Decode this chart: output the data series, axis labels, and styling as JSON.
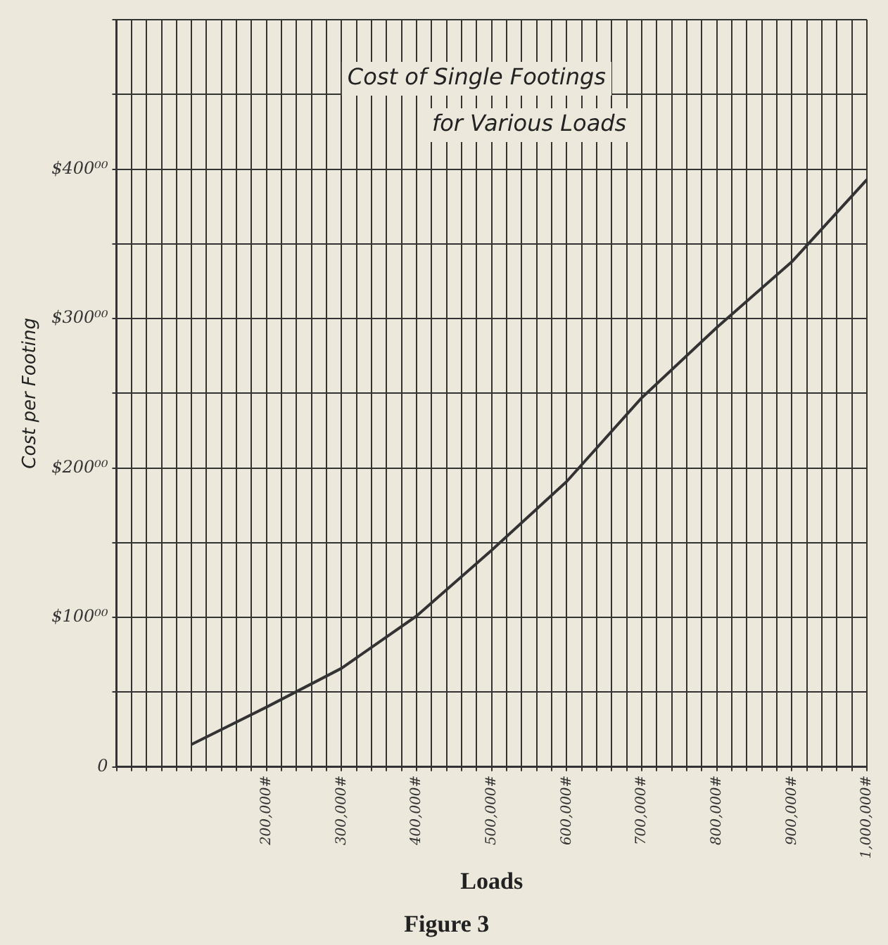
{
  "chart_data": {
    "type": "line",
    "title": "Cost of Single Footings",
    "subtitle": "for Various Loads",
    "xlabel": "Loads",
    "ylabel": "Cost per Footing",
    "annotations": [
      "Figure 3"
    ],
    "x": [
      100000,
      200000,
      300000,
      400000,
      500000,
      600000,
      700000,
      800000,
      900000,
      1000000
    ],
    "series": [
      {
        "color": "#333333",
        "values": [
          15,
          40,
          66,
          101,
          145,
          191,
          247,
          294,
          338,
          393
        ]
      }
    ],
    "xlim": [
      0,
      1000000
    ],
    "ylim": [
      0,
      500
    ],
    "xticks": [
      {
        "value": 0,
        "label": null
      },
      {
        "value": 20000,
        "label": null
      },
      {
        "value": 40000,
        "label": null
      },
      {
        "value": 60000,
        "label": null
      },
      {
        "value": 80000,
        "label": null
      },
      {
        "value": 100000,
        "label": null
      },
      {
        "value": 120000,
        "label": null
      },
      {
        "value": 140000,
        "label": null
      },
      {
        "value": 160000,
        "label": null
      },
      {
        "value": 180000,
        "label": null
      },
      {
        "value": 200000,
        "label": "200,000#"
      },
      {
        "value": 220000,
        "label": null
      },
      {
        "value": 240000,
        "label": null
      },
      {
        "value": 260000,
        "label": null
      },
      {
        "value": 280000,
        "label": null
      },
      {
        "value": 300000,
        "label": "300,000#"
      },
      {
        "value": 320000,
        "label": null
      },
      {
        "value": 340000,
        "label": null
      },
      {
        "value": 360000,
        "label": null
      },
      {
        "value": 380000,
        "label": null
      },
      {
        "value": 400000,
        "label": "400,000#"
      },
      {
        "value": 420000,
        "label": null
      },
      {
        "value": 440000,
        "label": null
      },
      {
        "value": 460000,
        "label": null
      },
      {
        "value": 480000,
        "label": null
      },
      {
        "value": 500000,
        "label": "500,000#"
      },
      {
        "value": 520000,
        "label": null
      },
      {
        "value": 540000,
        "label": null
      },
      {
        "value": 560000,
        "label": null
      },
      {
        "value": 580000,
        "label": null
      },
      {
        "value": 600000,
        "label": "600,000#"
      },
      {
        "value": 620000,
        "label": null
      },
      {
        "value": 640000,
        "label": null
      },
      {
        "value": 660000,
        "label": null
      },
      {
        "value": 680000,
        "label": null
      },
      {
        "value": 700000,
        "label": "700,000#"
      },
      {
        "value": 720000,
        "label": null
      },
      {
        "value": 740000,
        "label": null
      },
      {
        "value": 760000,
        "label": null
      },
      {
        "value": 780000,
        "label": null
      },
      {
        "value": 800000,
        "label": "800,000#"
      },
      {
        "value": 820000,
        "label": null
      },
      {
        "value": 840000,
        "label": null
      },
      {
        "value": 860000,
        "label": null
      },
      {
        "value": 880000,
        "label": null
      },
      {
        "value": 900000,
        "label": "900,000#"
      },
      {
        "value": 920000,
        "label": null
      },
      {
        "value": 940000,
        "label": null
      },
      {
        "value": 960000,
        "label": null
      },
      {
        "value": 980000,
        "label": null
      },
      {
        "value": 1000000,
        "label": "1,000,000#"
      }
    ],
    "yticks": [
      0,
      {
        "value": 50,
        "label": null
      },
      {
        "value": 100,
        "label": "$100⁰⁰"
      },
      {
        "value": 150,
        "label": null
      },
      {
        "value": 200,
        "label": "$200⁰⁰"
      },
      {
        "value": 250,
        "label": null
      },
      {
        "value": 300,
        "label": "$300⁰⁰"
      },
      {
        "value": 350,
        "label": null
      },
      {
        "value": 400,
        "label": "$400⁰⁰"
      },
      {
        "value": 450,
        "label": null
      },
      {
        "value": 500,
        "label": null
      }
    ],
    "grid": true,
    "marker": "none",
    "line_style": "solid"
  }
}
